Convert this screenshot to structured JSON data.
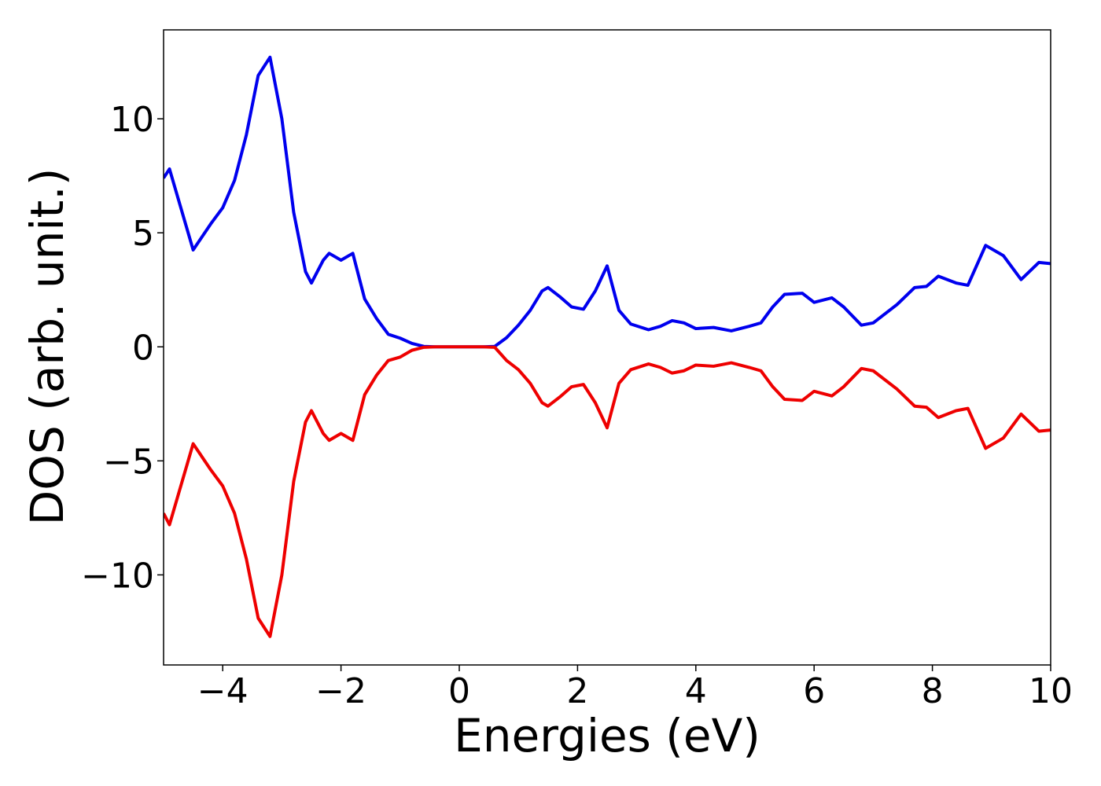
{
  "chart_data": {
    "type": "line",
    "xlabel": "Energies (eV)",
    "ylabel": "DOS (arb. unit.)",
    "x": [
      -5,
      -4.9,
      -4.5,
      -4.2,
      -4,
      -3.8,
      -3.6,
      -3.4,
      -3.2,
      -3,
      -2.8,
      -2.6,
      -2.5,
      -2.3,
      -2.2,
      -2,
      -1.8,
      -1.6,
      -1.4,
      -1.2,
      -1,
      -0.8,
      -0.6,
      -0.4,
      0,
      0.4,
      0.6,
      0.8,
      1,
      1.2,
      1.4,
      1.5,
      1.7,
      1.9,
      2.1,
      2.3,
      2.5,
      2.7,
      2.9,
      3.2,
      3.4,
      3.6,
      3.8,
      4,
      4.3,
      4.6,
      4.9,
      5.1,
      5.3,
      5.5,
      5.8,
      6,
      6.3,
      6.5,
      6.8,
      7,
      7.4,
      7.7,
      7.9,
      8.1,
      8.4,
      8.6,
      8.9,
      9.2,
      9.5,
      9.8,
      10
    ],
    "series": [
      {
        "color": "#0000ee",
        "values": [
          7.4,
          7.8,
          4.25,
          5.4,
          6.1,
          7.3,
          9.3,
          11.9,
          12.7,
          10.0,
          5.9,
          3.3,
          2.8,
          3.8,
          4.1,
          3.8,
          4.1,
          2.1,
          1.25,
          0.55,
          0.38,
          0.15,
          0.02,
          0,
          0,
          0,
          0.02,
          0.4,
          0.95,
          1.6,
          2.45,
          2.6,
          2.2,
          1.75,
          1.65,
          2.45,
          3.55,
          1.6,
          1.0,
          0.75,
          0.9,
          1.15,
          1.05,
          0.8,
          0.85,
          0.7,
          0.9,
          1.05,
          1.75,
          2.3,
          2.35,
          1.95,
          2.15,
          1.75,
          0.95,
          1.05,
          1.85,
          2.6,
          2.65,
          3.1,
          2.8,
          2.7,
          4.45,
          4.0,
          2.95,
          3.7,
          3.65
        ]
      },
      {
        "color": "#ee0000",
        "values": [
          -7.3,
          -7.8,
          -4.25,
          -5.4,
          -6.1,
          -7.3,
          -9.3,
          -11.9,
          -12.7,
          -10.0,
          -5.9,
          -3.3,
          -2.8,
          -3.8,
          -4.1,
          -3.8,
          -4.1,
          -2.1,
          -1.25,
          -0.6,
          -0.45,
          -0.15,
          -0.02,
          0,
          0,
          0,
          -0.02,
          -0.6,
          -1.0,
          -1.6,
          -2.45,
          -2.6,
          -2.2,
          -1.75,
          -1.65,
          -2.45,
          -3.55,
          -1.6,
          -1.0,
          -0.75,
          -0.9,
          -1.15,
          -1.05,
          -0.8,
          -0.85,
          -0.7,
          -0.9,
          -1.05,
          -1.75,
          -2.3,
          -2.35,
          -1.95,
          -2.15,
          -1.75,
          -0.95,
          -1.05,
          -1.85,
          -2.6,
          -2.65,
          -3.1,
          -2.8,
          -2.7,
          -4.45,
          -4.0,
          -2.95,
          -3.7,
          -3.65
        ]
      }
    ],
    "xlim": [
      -5,
      10
    ],
    "xticks": [
      {
        "value": -4,
        "label": "−4"
      },
      {
        "value": -2,
        "label": "−2"
      },
      0,
      2,
      4,
      6,
      8,
      10
    ],
    "ylim": [
      -13.95,
      13.9
    ],
    "yticks": [
      {
        "value": -10,
        "label": "−10"
      },
      {
        "value": -5,
        "label": "−5"
      },
      0,
      5,
      10
    ],
    "grid": false
  }
}
